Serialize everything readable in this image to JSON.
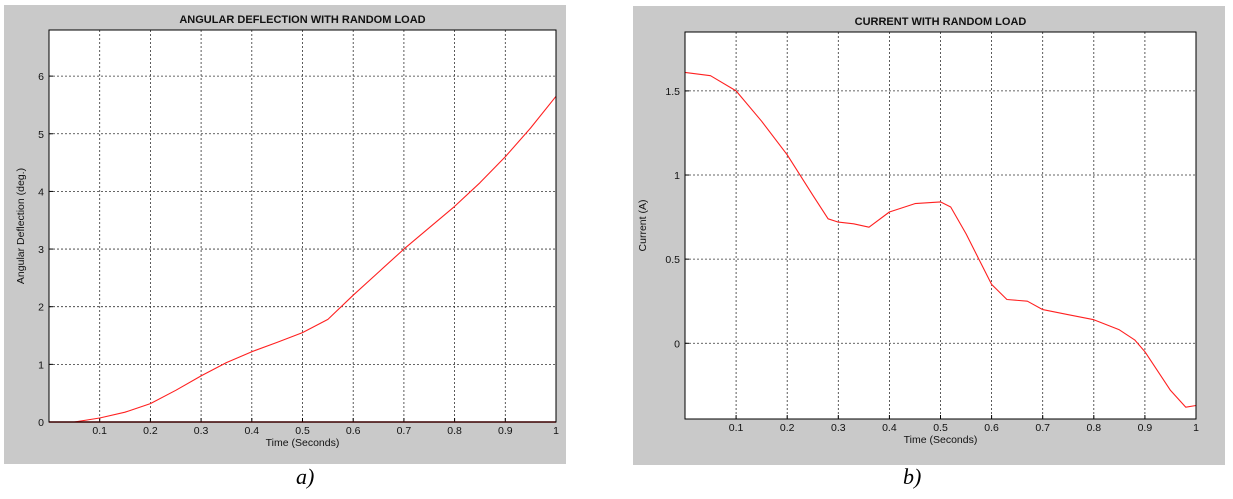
{
  "chart_data": [
    {
      "type": "line",
      "title": "ANGULAR DEFLECTION WITH RANDOM LOAD",
      "xlabel": "Time (Seconds)",
      "ylabel": "Angular Deflection (deg.)",
      "xlim": [
        0,
        1
      ],
      "ylim": [
        0,
        6.8
      ],
      "xticks": [
        0.1,
        0.2,
        0.3,
        0.4,
        0.5,
        0.6,
        0.7,
        0.8,
        0.9,
        1
      ],
      "yticks": [
        0,
        1,
        2,
        3,
        4,
        5,
        6
      ],
      "grid": true,
      "colors": {
        "line": "#ff2020",
        "baseline": "#b00000",
        "grid": "#333333"
      },
      "series": [
        {
          "x": [
            0,
            0.05,
            0.1,
            0.15,
            0.2,
            0.25,
            0.3,
            0.35,
            0.4,
            0.45,
            0.5,
            0.55,
            0.6,
            0.65,
            0.7,
            0.75,
            0.8,
            0.85,
            0.9,
            0.95,
            1
          ],
          "values": [
            0,
            0,
            0.07,
            0.17,
            0.32,
            0.55,
            0.8,
            1.03,
            1.22,
            1.38,
            1.55,
            1.78,
            2.2,
            2.6,
            3.0,
            3.37,
            3.74,
            4.15,
            4.6,
            5.1,
            5.65
          ]
        },
        {
          "x": [
            0,
            1
          ],
          "values": [
            0,
            0
          ]
        }
      ]
    },
    {
      "type": "line",
      "title": "CURRENT WITH RANDOM LOAD",
      "xlabel": "Time (Seconds)",
      "ylabel": "Current (A)",
      "xlim": [
        0,
        1
      ],
      "ylim": [
        -0.45,
        1.85
      ],
      "xticks": [
        0.1,
        0.2,
        0.3,
        0.4,
        0.5,
        0.6,
        0.7,
        0.8,
        0.9,
        1
      ],
      "yticks": [
        0,
        0.5,
        1,
        1.5
      ],
      "grid": true,
      "colors": {
        "line": "#ff2020",
        "grid": "#333333"
      },
      "series": [
        {
          "x": [
            0,
            0.05,
            0.1,
            0.15,
            0.2,
            0.25,
            0.28,
            0.3,
            0.33,
            0.36,
            0.4,
            0.45,
            0.5,
            0.52,
            0.55,
            0.6,
            0.63,
            0.67,
            0.7,
            0.75,
            0.8,
            0.85,
            0.88,
            0.9,
            0.95,
            0.98,
            1
          ],
          "values": [
            1.61,
            1.59,
            1.5,
            1.32,
            1.12,
            0.88,
            0.74,
            0.72,
            0.71,
            0.69,
            0.78,
            0.83,
            0.84,
            0.81,
            0.65,
            0.35,
            0.26,
            0.25,
            0.2,
            0.17,
            0.14,
            0.08,
            0.02,
            -0.05,
            -0.28,
            -0.38,
            -0.37
          ]
        }
      ]
    }
  ],
  "captions": [
    "a)",
    "b)"
  ]
}
